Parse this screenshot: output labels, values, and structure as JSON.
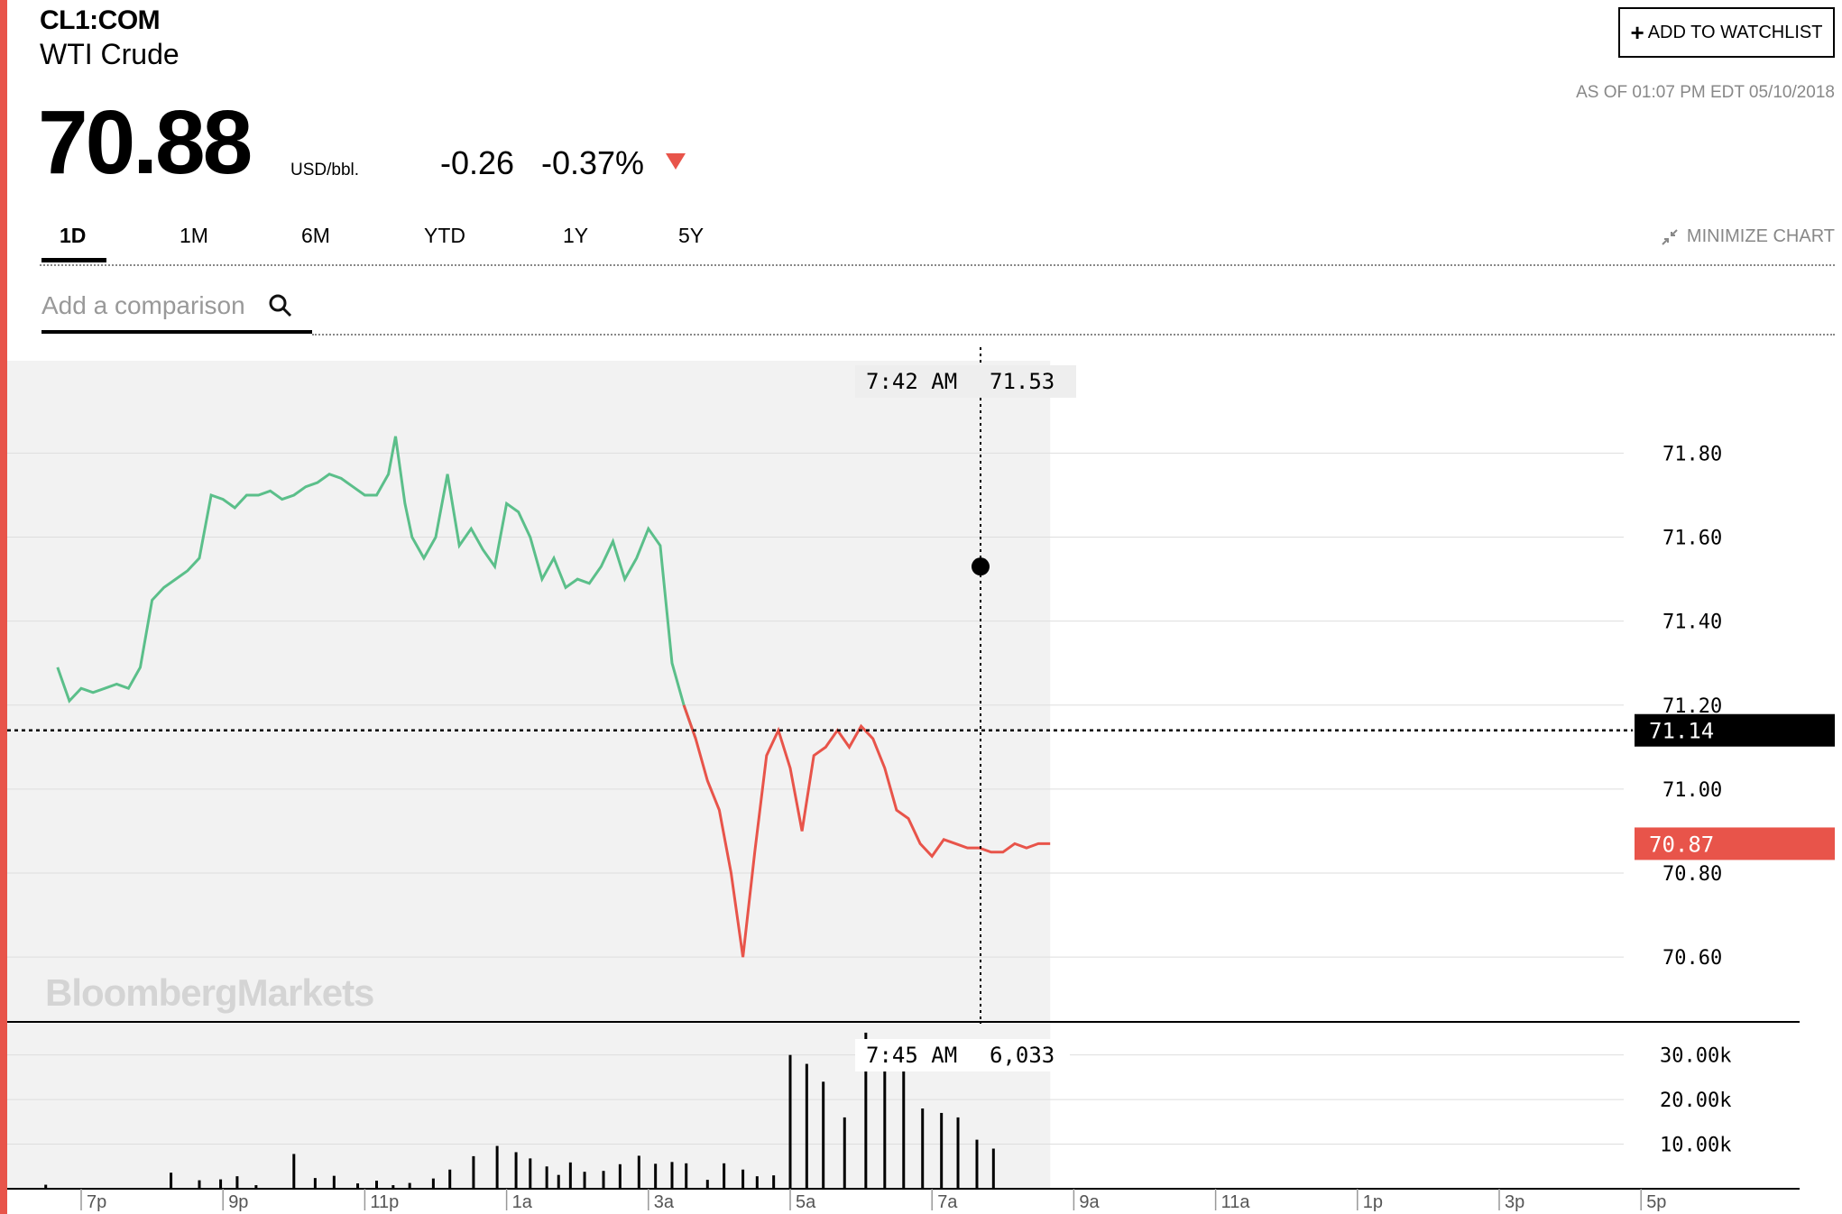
{
  "header": {
    "ticker": "CL1:COM",
    "name": "WTI Crude",
    "price": "70.88",
    "unit": "USD/bbl.",
    "change": "-0.26",
    "change_pct": "-0.37%",
    "watchlist_label": "ADD TO WATCHLIST",
    "as_of": "AS OF 01:07 PM EDT 05/10/2018",
    "direction_color": "#e8544a"
  },
  "tabs": [
    {
      "label": "1D",
      "active": true
    },
    {
      "label": "1M",
      "active": false
    },
    {
      "label": "6M",
      "active": false
    },
    {
      "label": "YTD",
      "active": false
    },
    {
      "label": "1Y",
      "active": false
    },
    {
      "label": "5Y",
      "active": false
    }
  ],
  "minimize_label": "MINIMIZE CHART",
  "comparison": {
    "placeholder": "Add a comparison"
  },
  "watermark": "BloombergMarkets",
  "chart_data": {
    "type": "line",
    "x_ticks": [
      "7p",
      "9p",
      "11p",
      "1a",
      "3a",
      "5a",
      "7a",
      "9a",
      "11a",
      "1p",
      "3p",
      "5p"
    ],
    "y_ticks": [
      "71.80",
      "71.60",
      "71.40",
      "71.20",
      "71.00",
      "70.80",
      "70.60"
    ],
    "ylim": [
      70.45,
      72.02
    ],
    "previous_close": "71.14",
    "last_price": "70.87",
    "up_color": "#5bbf8a",
    "down_color": "#e8544a",
    "crosshair": {
      "time": "7:42 AM",
      "price": "71.53"
    },
    "series": [
      {
        "x": [
          -1.0,
          -0.5,
          0,
          0.5,
          1.0,
          1.5,
          2.0,
          2.5,
          3.0,
          3.5,
          4.0,
          4.5,
          5.0,
          5.5,
          6.0,
          6.5,
          7.0,
          7.5,
          8.0,
          8.5,
          9.0,
          9.5,
          10.0,
          10.5,
          11.0,
          11.5,
          12.0,
          12.5,
          13.0,
          13.3,
          13.7,
          14.0,
          14.5,
          15.0,
          15.5,
          16.0,
          16.5,
          17.0,
          17.5,
          18.0,
          18.5,
          19.0,
          19.5,
          20.0,
          20.5,
          21.0,
          21.5,
          22.0,
          22.5,
          23.0,
          23.5,
          24.0,
          24.5,
          25.0,
          25.5,
          26.0,
          26.5,
          27.0,
          27.5,
          28.0,
          28.5,
          29.0,
          29.5,
          30.0,
          30.5,
          31.0,
          31.5,
          32.0,
          32.5,
          33.0,
          33.5,
          34.0,
          34.5,
          35.0,
          35.5,
          36.0,
          36.5,
          37.0,
          37.5,
          38.0,
          38.5,
          39.0,
          39.5,
          40.0,
          40.5,
          41.0
        ],
        "y": [
          71.29,
          71.21,
          71.24,
          71.23,
          71.24,
          71.25,
          71.24,
          71.29,
          71.45,
          71.48,
          71.5,
          71.52,
          71.55,
          71.7,
          71.69,
          71.67,
          71.7,
          71.7,
          71.71,
          71.69,
          71.7,
          71.72,
          71.73,
          71.75,
          71.74,
          71.72,
          71.7,
          71.7,
          71.75,
          71.84,
          71.68,
          71.6,
          71.55,
          71.6,
          71.75,
          71.58,
          71.62,
          71.57,
          71.53,
          71.68,
          71.66,
          71.6,
          71.5,
          71.55,
          71.48,
          71.5,
          71.49,
          71.53,
          71.59,
          71.5,
          71.55,
          71.62,
          71.58,
          71.3,
          71.2,
          71.12,
          71.02,
          70.95,
          70.8,
          70.6,
          70.85,
          71.08,
          71.14,
          71.05,
          70.9,
          71.08,
          71.1,
          71.14,
          71.1,
          71.15,
          71.12,
          71.05,
          70.95,
          70.93,
          70.87,
          70.84,
          70.88,
          70.87,
          70.86,
          70.86,
          70.85,
          70.85,
          70.87,
          70.86,
          70.87,
          70.87
        ]
      }
    ],
    "volume": {
      "y_ticks": [
        "30.00k",
        "20.00k",
        "10.00k"
      ],
      "ylim": [
        0,
        36000
      ],
      "crosshair": {
        "time": "7:45 AM",
        "volume": "6,033"
      },
      "bar_color": "#000000",
      "x": [
        -1.5,
        3.8,
        5.0,
        5.9,
        6.6,
        7.4,
        9.0,
        9.9,
        10.7,
        11.7,
        12.5,
        13.2,
        13.9,
        14.9,
        15.6,
        16.6,
        17.6,
        18.4,
        19.0,
        19.7,
        20.2,
        20.7,
        21.3,
        22.1,
        22.8,
        23.6,
        24.3,
        25.0,
        25.6,
        26.5,
        27.2,
        28.0,
        28.6,
        29.3,
        30.0,
        30.7,
        31.4,
        32.3,
        33.2,
        34.0,
        34.8,
        35.6,
        36.4,
        37.1,
        37.9,
        38.6
      ],
      "values": [
        900,
        3600,
        1900,
        2100,
        2800,
        800,
        7800,
        2400,
        2900,
        1200,
        1800,
        800,
        1300,
        2300,
        4300,
        7300,
        9600,
        8200,
        6800,
        5000,
        3100,
        5900,
        3800,
        4000,
        5500,
        7400,
        5600,
        6000,
        5700,
        2000,
        5700,
        4300,
        2800,
        3000,
        30000,
        28000,
        24000,
        16000,
        35000,
        30000,
        27000,
        18000,
        17000,
        16000,
        11000,
        9000
      ]
    }
  }
}
